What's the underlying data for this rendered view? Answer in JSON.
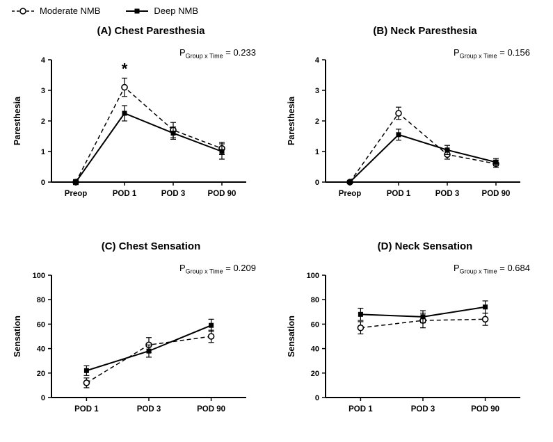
{
  "colors": {
    "line": "#000000",
    "background": "#ffffff"
  },
  "legend": {
    "items": [
      {
        "label": "Moderate NMB",
        "marker": "open-circle",
        "line": "dashed"
      },
      {
        "label": "Deep NMB",
        "marker": "filled-square",
        "line": "solid"
      }
    ]
  },
  "chart_data": [
    {
      "id": "A",
      "type": "line",
      "title": "(A) Chest Paresthesia",
      "xlabel": "",
      "ylabel": "Paresthesia",
      "ylim": [
        0,
        4
      ],
      "yticks": [
        0,
        1,
        2,
        3,
        4
      ],
      "categories": [
        "Preop",
        "POD 1",
        "POD 3",
        "POD 90"
      ],
      "grid": false,
      "legend_position": "figure-top-left",
      "p": {
        "prefix": "P",
        "sub": "Group x Time",
        "rest": " = 0.233"
      },
      "star": {
        "category": "POD 1",
        "symbol": "*"
      },
      "series": [
        {
          "name": "Moderate NMB",
          "style": "dashed-circle",
          "values": [
            0,
            3.1,
            1.7,
            1.1
          ],
          "errors": [
            0.08,
            0.3,
            0.25,
            0.2
          ]
        },
        {
          "name": "Deep NMB",
          "style": "solid-square",
          "values": [
            0,
            2.25,
            1.6,
            1.0
          ],
          "errors": [
            0.08,
            0.25,
            0.2,
            0.25
          ]
        }
      ]
    },
    {
      "id": "B",
      "type": "line",
      "title": "(B) Neck Paresthesia",
      "xlabel": "",
      "ylabel": "Paresthesia",
      "ylim": [
        0,
        4
      ],
      "yticks": [
        0,
        1,
        2,
        3,
        4
      ],
      "categories": [
        "Preop",
        "POD 1",
        "POD 3",
        "POD 90"
      ],
      "grid": false,
      "legend_position": "figure-top-left",
      "p": {
        "prefix": "P",
        "sub": "Group x Time",
        "rest": " = 0.156"
      },
      "star": null,
      "series": [
        {
          "name": "Moderate NMB",
          "style": "dashed-circle",
          "values": [
            0,
            2.25,
            0.9,
            0.6
          ],
          "errors": [
            0.05,
            0.2,
            0.15,
            0.12
          ]
        },
        {
          "name": "Deep NMB",
          "style": "solid-square",
          "values": [
            0,
            1.55,
            1.05,
            0.65
          ],
          "errors": [
            0.05,
            0.18,
            0.15,
            0.12
          ]
        }
      ]
    },
    {
      "id": "C",
      "type": "line",
      "title": "(C) Chest Sensation",
      "xlabel": "",
      "ylabel": "Sensation",
      "ylim": [
        0,
        100
      ],
      "yticks": [
        0,
        20,
        40,
        60,
        80,
        100
      ],
      "categories": [
        "POD 1",
        "POD 3",
        "POD 90"
      ],
      "grid": false,
      "legend_position": "figure-top-left",
      "p": {
        "prefix": "P",
        "sub": "Group x Time",
        "rest": " = 0.209"
      },
      "star": null,
      "series": [
        {
          "name": "Moderate NMB",
          "style": "dashed-circle",
          "values": [
            12,
            43,
            50
          ],
          "errors": [
            4,
            6,
            5
          ]
        },
        {
          "name": "Deep NMB",
          "style": "solid-square",
          "values": [
            22,
            38,
            59
          ],
          "errors": [
            4,
            5,
            5
          ]
        }
      ]
    },
    {
      "id": "D",
      "type": "line",
      "title": "(D) Neck Sensation",
      "xlabel": "",
      "ylabel": "Sensation",
      "ylim": [
        0,
        100
      ],
      "yticks": [
        0,
        20,
        40,
        60,
        80,
        100
      ],
      "categories": [
        "POD 1",
        "POD 3",
        "POD 90"
      ],
      "grid": false,
      "legend_position": "figure-top-left",
      "p": {
        "prefix": "P",
        "sub": "Group x Time",
        "rest": " = 0.684"
      },
      "star": null,
      "series": [
        {
          "name": "Moderate NMB",
          "style": "dashed-circle",
          "values": [
            57,
            63,
            64
          ],
          "errors": [
            5,
            6,
            5
          ]
        },
        {
          "name": "Deep NMB",
          "style": "solid-square",
          "values": [
            68,
            66,
            74
          ],
          "errors": [
            5,
            5,
            5
          ]
        }
      ]
    }
  ]
}
